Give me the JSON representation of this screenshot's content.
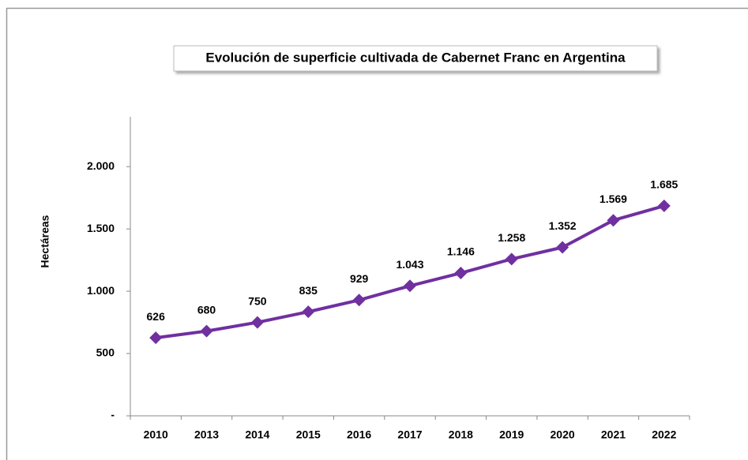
{
  "chart_data": {
    "type": "line",
    "title": "Evolución de superficie cultivada de Cabernet Franc en Argentina",
    "y_label": "Hectáreas",
    "categories": [
      "2010",
      "2013",
      "2014",
      "2015",
      "2016",
      "2017",
      "2018",
      "2019",
      "2020",
      "2021",
      "2022"
    ],
    "series": [
      {
        "name": "Hectáreas",
        "color": "#7030a0",
        "values": [
          626,
          680,
          750,
          835,
          929,
          1043,
          1146,
          1258,
          1352,
          1569,
          1685
        ],
        "value_labels": [
          "626",
          "680",
          "750",
          "835",
          "929",
          "1.043",
          "1.146",
          "1.258",
          "1.352",
          "1.569",
          "1.685"
        ]
      }
    ],
    "ylim": [
      0,
      2400
    ],
    "yticks": [
      {
        "value": 0,
        "label": "-"
      },
      500,
      {
        "value": 1000,
        "label": "1.000"
      },
      {
        "value": 1500,
        "label": "1.500"
      },
      {
        "value": 2000,
        "label": "2.000"
      }
    ],
    "grid": false
  }
}
